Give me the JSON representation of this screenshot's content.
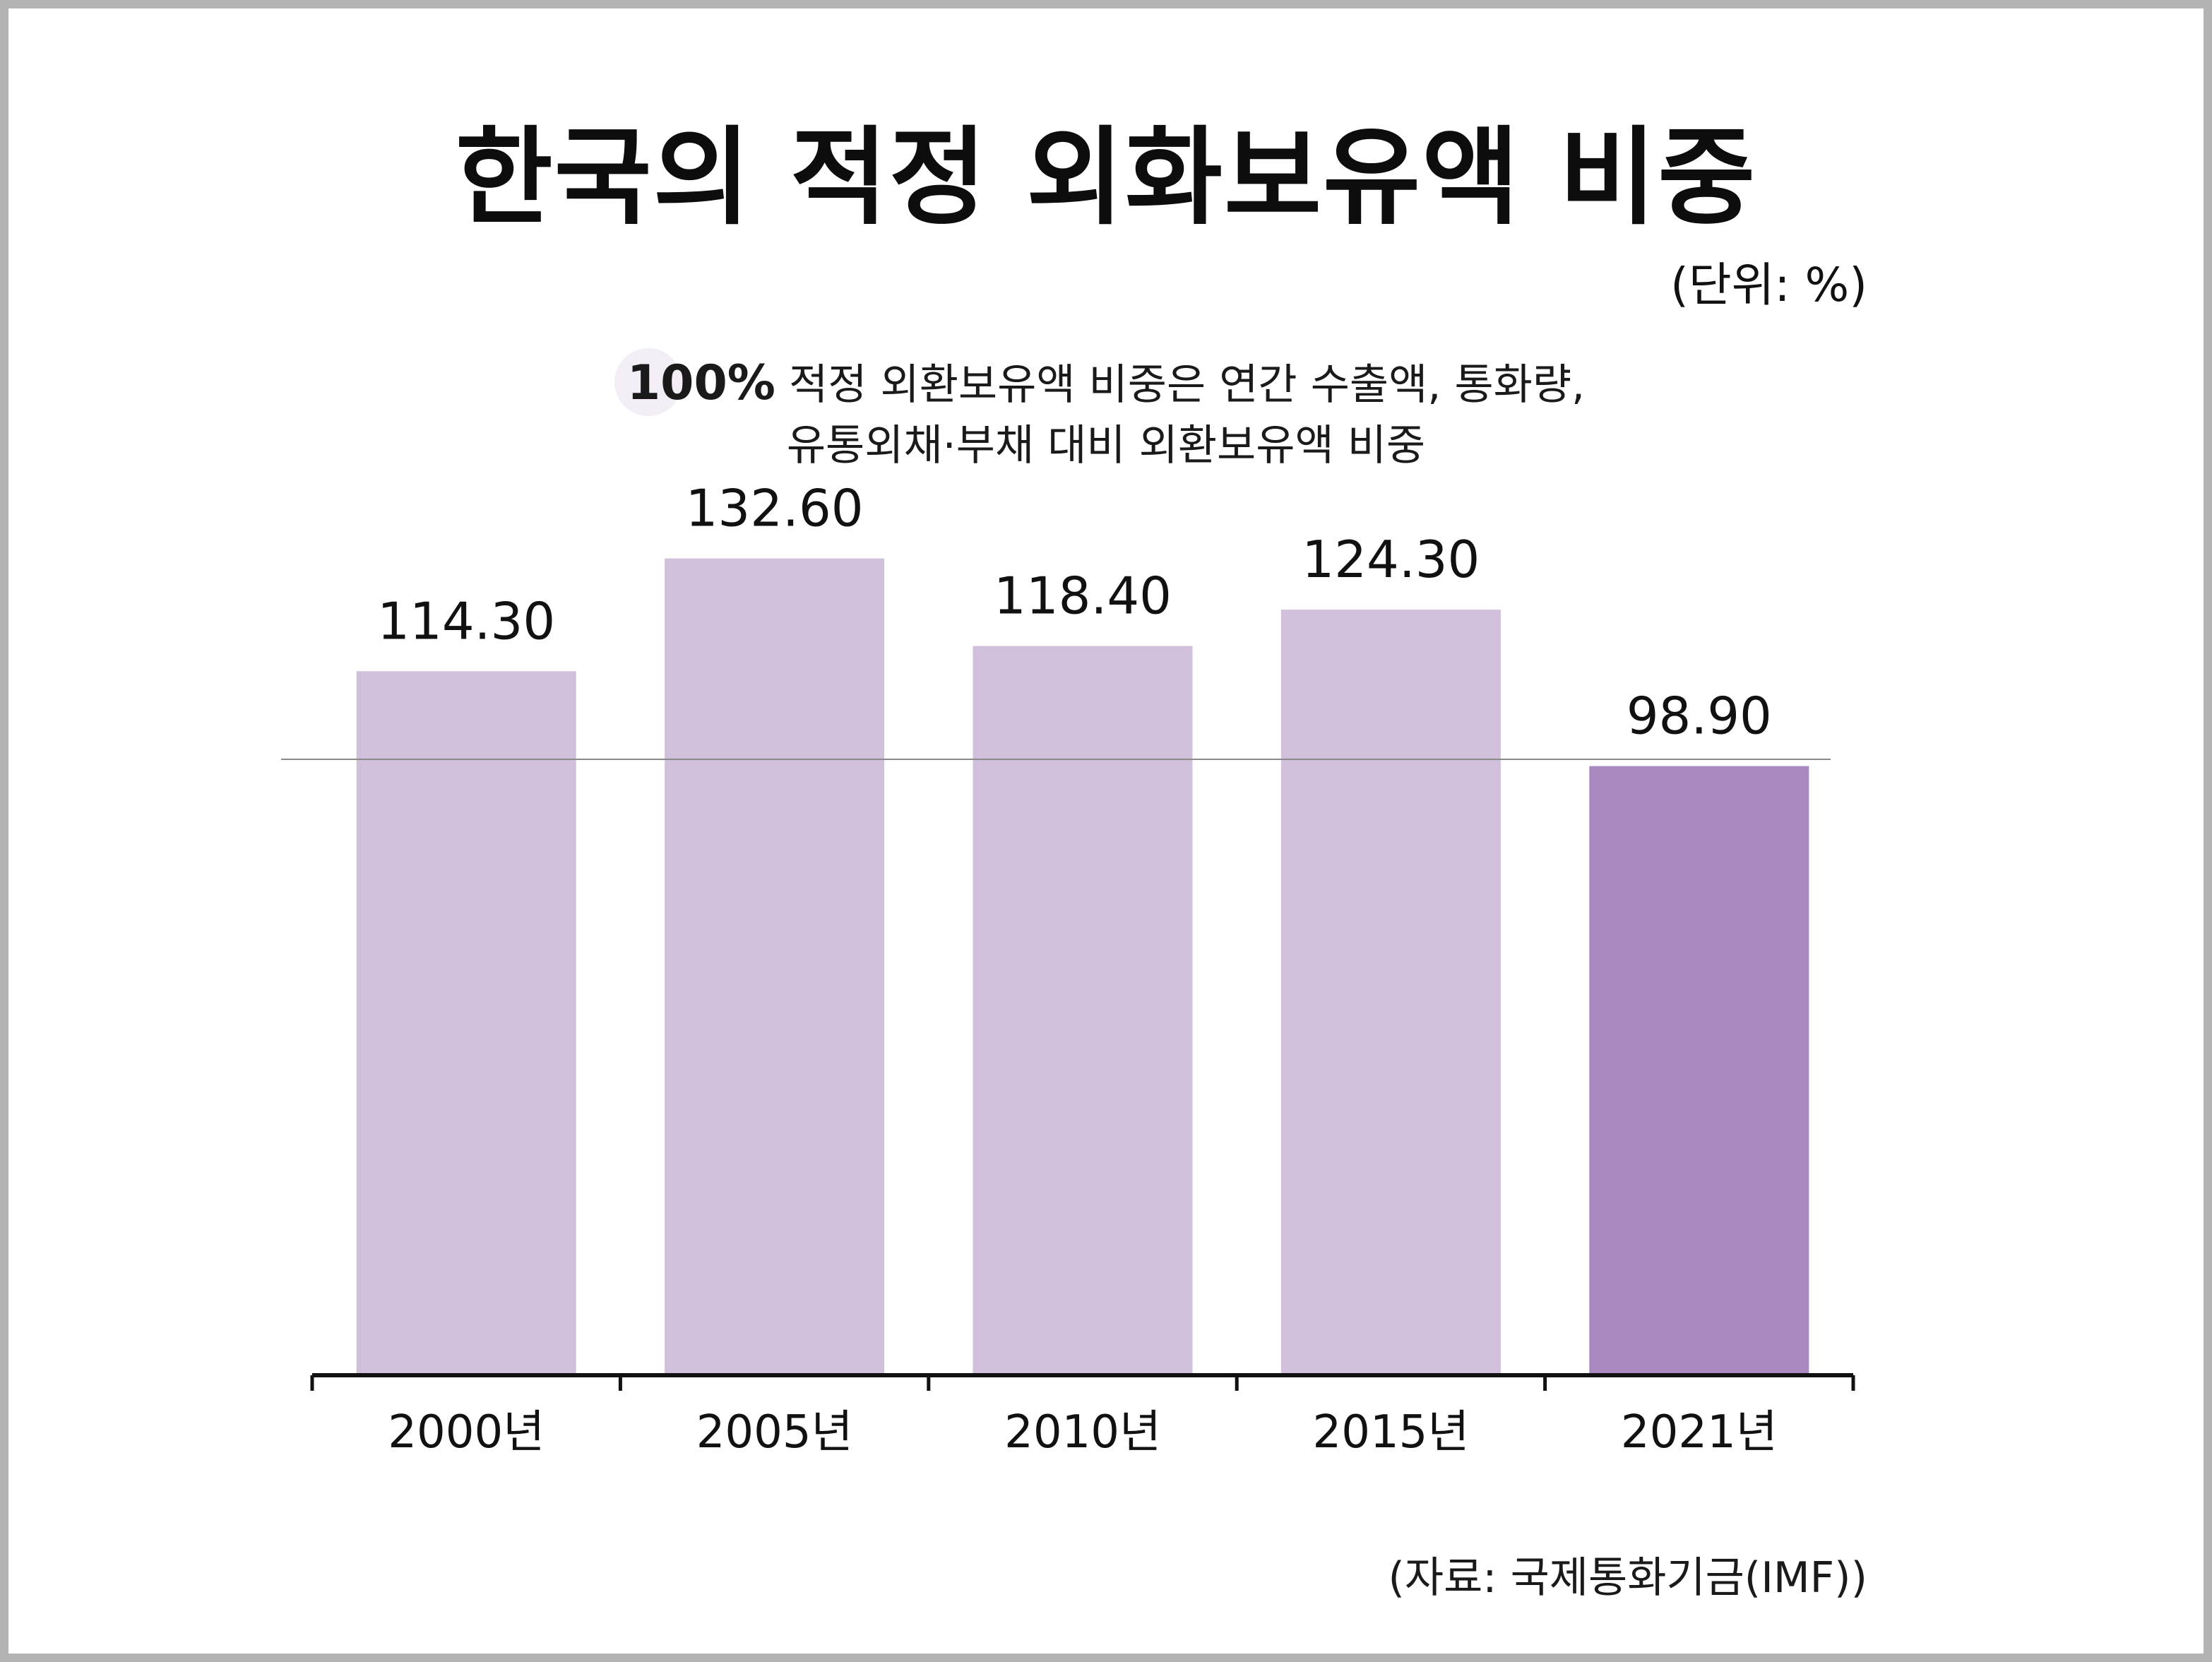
{
  "title": "한국의 적정 외화보유액 비중",
  "unit": "(단위: %)",
  "reference_note": {
    "value_label": "100%",
    "line1": "적정 외환보유액 비중은 연간 수출액, 통화량,",
    "line2": "유통외채·부채 대비 외환보유액 비중"
  },
  "source": "(자료: 국제통화기금(IMF))",
  "colors": {
    "bar": "#d1c0dc",
    "highlight_bar": "#a989c0",
    "reference_line": "#8a8a8a",
    "axis": "#111111"
  },
  "chart_data": {
    "type": "bar",
    "categories": [
      "2000년",
      "2005년",
      "2010년",
      "2015년",
      "2021년"
    ],
    "values": [
      114.3,
      132.6,
      118.4,
      124.3,
      98.9
    ],
    "value_labels": [
      "114.30",
      "132.60",
      "118.40",
      "124.30",
      "98.90"
    ],
    "highlight_index": 4,
    "reference_value": 100,
    "ylim": [
      0,
      140
    ],
    "grid": false,
    "title": "한국의 적정 외화보유액 비중",
    "xlabel": "",
    "ylabel": ""
  }
}
